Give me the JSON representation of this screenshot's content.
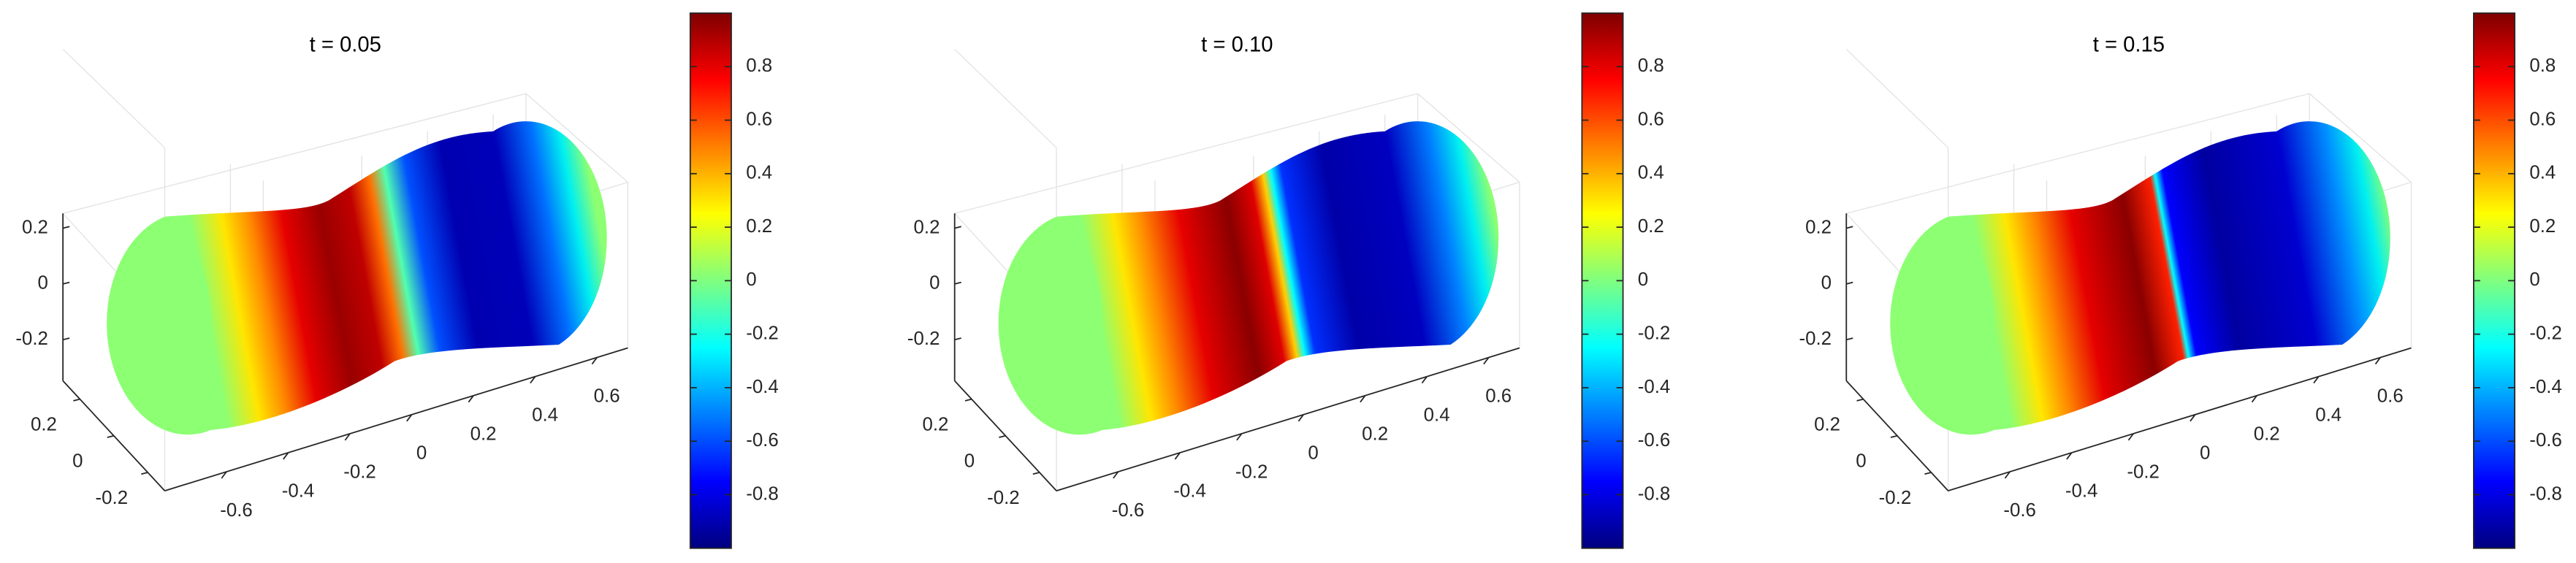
{
  "chart_data": [
    {
      "type": "surface",
      "title": "t = 0.05",
      "xlim": [
        -0.8,
        0.7
      ],
      "ylim": [
        -0.3,
        0.3
      ],
      "zlim": [
        -0.3,
        0.3
      ],
      "xticks": [
        -0.6,
        -0.4,
        -0.2,
        0,
        0.2,
        0.4,
        0.6
      ],
      "yticks": [
        -0.2,
        0,
        0.2
      ],
      "zticks": [
        -0.2,
        0,
        0.2
      ],
      "colorbar": {
        "colormap": "jet",
        "clim": [
          -1,
          1
        ],
        "ticks": [
          -0.8,
          -0.6,
          -0.4,
          -0.2,
          0,
          0.2,
          0.4,
          0.6,
          0.8
        ]
      }
    },
    {
      "type": "surface",
      "title": "t = 0.10",
      "xlim": [
        -0.8,
        0.7
      ],
      "ylim": [
        -0.3,
        0.3
      ],
      "zlim": [
        -0.3,
        0.3
      ],
      "xticks": [
        -0.6,
        -0.4,
        -0.2,
        0,
        0.2,
        0.4,
        0.6
      ],
      "yticks": [
        -0.2,
        0,
        0.2
      ],
      "zticks": [
        -0.2,
        0,
        0.2
      ],
      "colorbar": {
        "colormap": "jet",
        "clim": [
          -1,
          1
        ],
        "ticks": [
          -0.8,
          -0.6,
          -0.4,
          -0.2,
          0,
          0.2,
          0.4,
          0.6,
          0.8
        ]
      }
    },
    {
      "type": "surface",
      "title": "t = 0.15",
      "xlim": [
        -0.8,
        0.7
      ],
      "ylim": [
        -0.3,
        0.3
      ],
      "zlim": [
        -0.3,
        0.3
      ],
      "xticks": [
        -0.6,
        -0.4,
        -0.2,
        0,
        0.2,
        0.4,
        0.6
      ],
      "yticks": [
        -0.2,
        0,
        0.2
      ],
      "zticks": [
        -0.2,
        0,
        0.2
      ],
      "colorbar": {
        "colormap": "jet",
        "clim": [
          -1,
          1
        ],
        "ticks": [
          -0.8,
          -0.6,
          -0.4,
          -0.2,
          0,
          0.2,
          0.4,
          0.6,
          0.8
        ]
      }
    }
  ]
}
